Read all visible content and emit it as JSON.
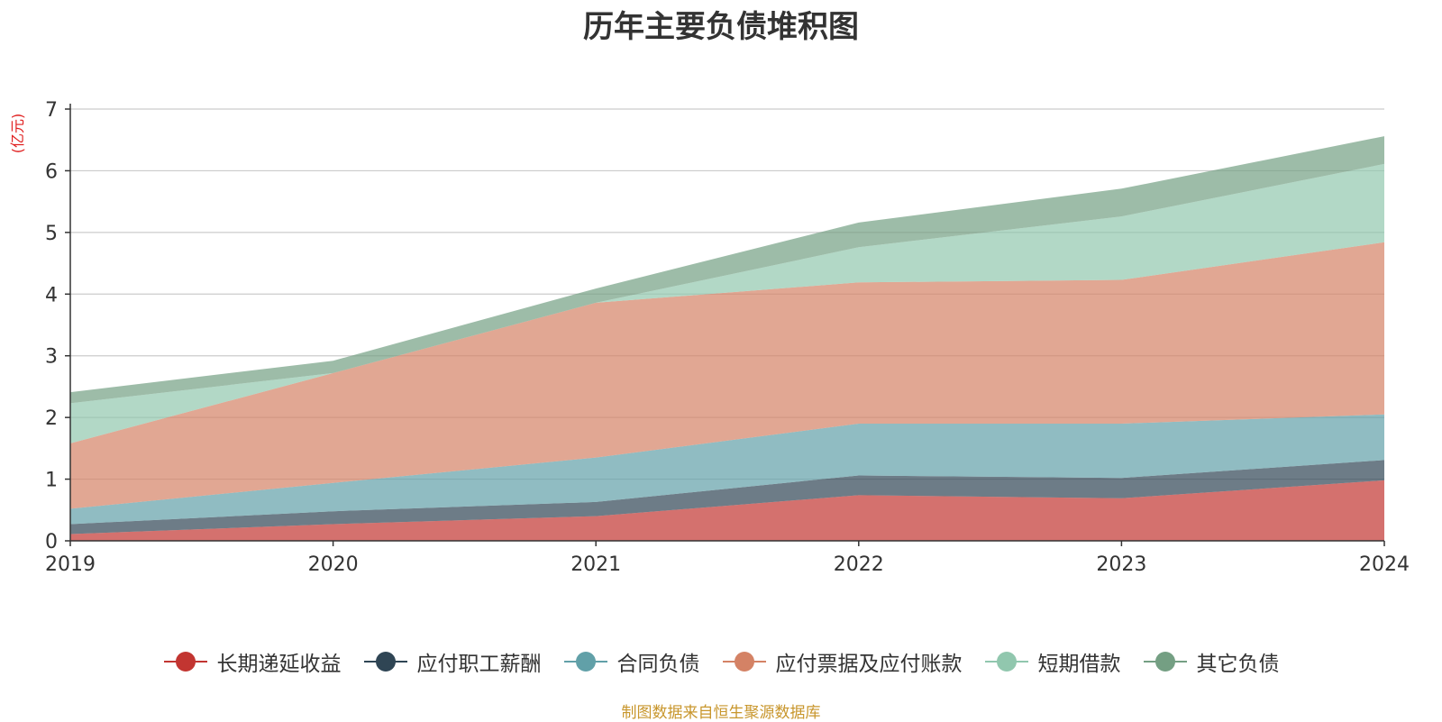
{
  "chart_data": {
    "type": "area",
    "stacked": true,
    "title": "历年主要负债堆积图",
    "ylabel": "(亿元)",
    "xlabel": "",
    "categories": [
      "2019",
      "2020",
      "2021",
      "2022",
      "2023",
      "2024"
    ],
    "ylim": [
      0,
      7
    ],
    "yticks": [
      0,
      1,
      2,
      3,
      4,
      5,
      6,
      7
    ],
    "grid": true,
    "legend_position": "bottom",
    "series": [
      {
        "name": "长期递延收益",
        "color": "#c23531",
        "values": [
          0.11,
          0.27,
          0.4,
          0.74,
          0.69,
          0.98
        ]
      },
      {
        "name": "应付职工薪酬",
        "color": "#2f4554",
        "values": [
          0.16,
          0.21,
          0.23,
          0.32,
          0.33,
          0.33
        ]
      },
      {
        "name": "合同负债",
        "color": "#61a0a8",
        "values": [
          0.25,
          0.46,
          0.72,
          0.84,
          0.88,
          0.74
        ]
      },
      {
        "name": "应付票据及应付账款",
        "color": "#d48265",
        "values": [
          1.06,
          1.78,
          2.51,
          2.29,
          2.33,
          2.79
        ]
      },
      {
        "name": "短期借款",
        "color": "#91c7ae",
        "values": [
          0.65,
          0.0,
          0.0,
          0.57,
          1.03,
          1.27
        ]
      },
      {
        "name": "其它负债",
        "color": "#749f83",
        "values": [
          0.18,
          0.2,
          0.23,
          0.4,
          0.45,
          0.45
        ]
      }
    ]
  },
  "footer": {
    "source": "制图数据来自恒生聚源数据库"
  }
}
